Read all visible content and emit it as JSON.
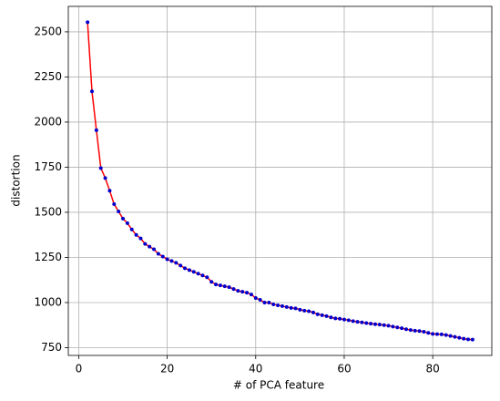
{
  "chart_data": {
    "type": "line",
    "x_label": "# of PCA feature",
    "y_label": "distortion",
    "x": [
      2,
      3,
      4,
      5,
      6,
      7,
      8,
      9,
      10,
      11,
      12,
      13,
      14,
      15,
      16,
      17,
      18,
      19,
      20,
      21,
      22,
      23,
      24,
      25,
      26,
      27,
      28,
      29,
      30,
      31,
      32,
      33,
      34,
      35,
      36,
      37,
      38,
      39,
      40,
      41,
      42,
      43,
      44,
      45,
      46,
      47,
      48,
      49,
      50,
      51,
      52,
      53,
      54,
      55,
      56,
      57,
      58,
      59,
      60,
      61,
      62,
      63,
      64,
      65,
      66,
      67,
      68,
      69,
      70,
      71,
      72,
      73,
      74,
      75,
      76,
      77,
      78,
      79,
      80,
      81,
      82,
      83,
      84,
      85,
      86,
      87,
      88,
      89
    ],
    "series": [
      {
        "color": "#ff0000",
        "marker_color": "#0000cd",
        "values": [
          2553,
          2170,
          1955,
          1745,
          1690,
          1620,
          1545,
          1505,
          1465,
          1440,
          1405,
          1375,
          1355,
          1325,
          1310,
          1295,
          1270,
          1255,
          1240,
          1230,
          1220,
          1205,
          1190,
          1180,
          1170,
          1160,
          1150,
          1140,
          1115,
          1100,
          1095,
          1090,
          1085,
          1075,
          1065,
          1060,
          1055,
          1045,
          1025,
          1015,
          1000,
          1000,
          990,
          985,
          980,
          975,
          970,
          968,
          960,
          955,
          952,
          945,
          935,
          930,
          925,
          918,
          912,
          910,
          906,
          902,
          897,
          893,
          890,
          886,
          883,
          880,
          878,
          875,
          872,
          867,
          862,
          858,
          852,
          848,
          844,
          842,
          838,
          832,
          826,
          825,
          824,
          820,
          815,
          810,
          805,
          800,
          796,
          795
        ]
      }
    ],
    "xlim": [
      -2.35,
      93.35
    ],
    "ylim": [
      707,
      2641
    ],
    "xticks": [
      0,
      20,
      40,
      60,
      80
    ],
    "yticks": [
      750,
      1000,
      1250,
      1500,
      1750,
      2000,
      2250,
      2500
    ],
    "grid": true
  }
}
